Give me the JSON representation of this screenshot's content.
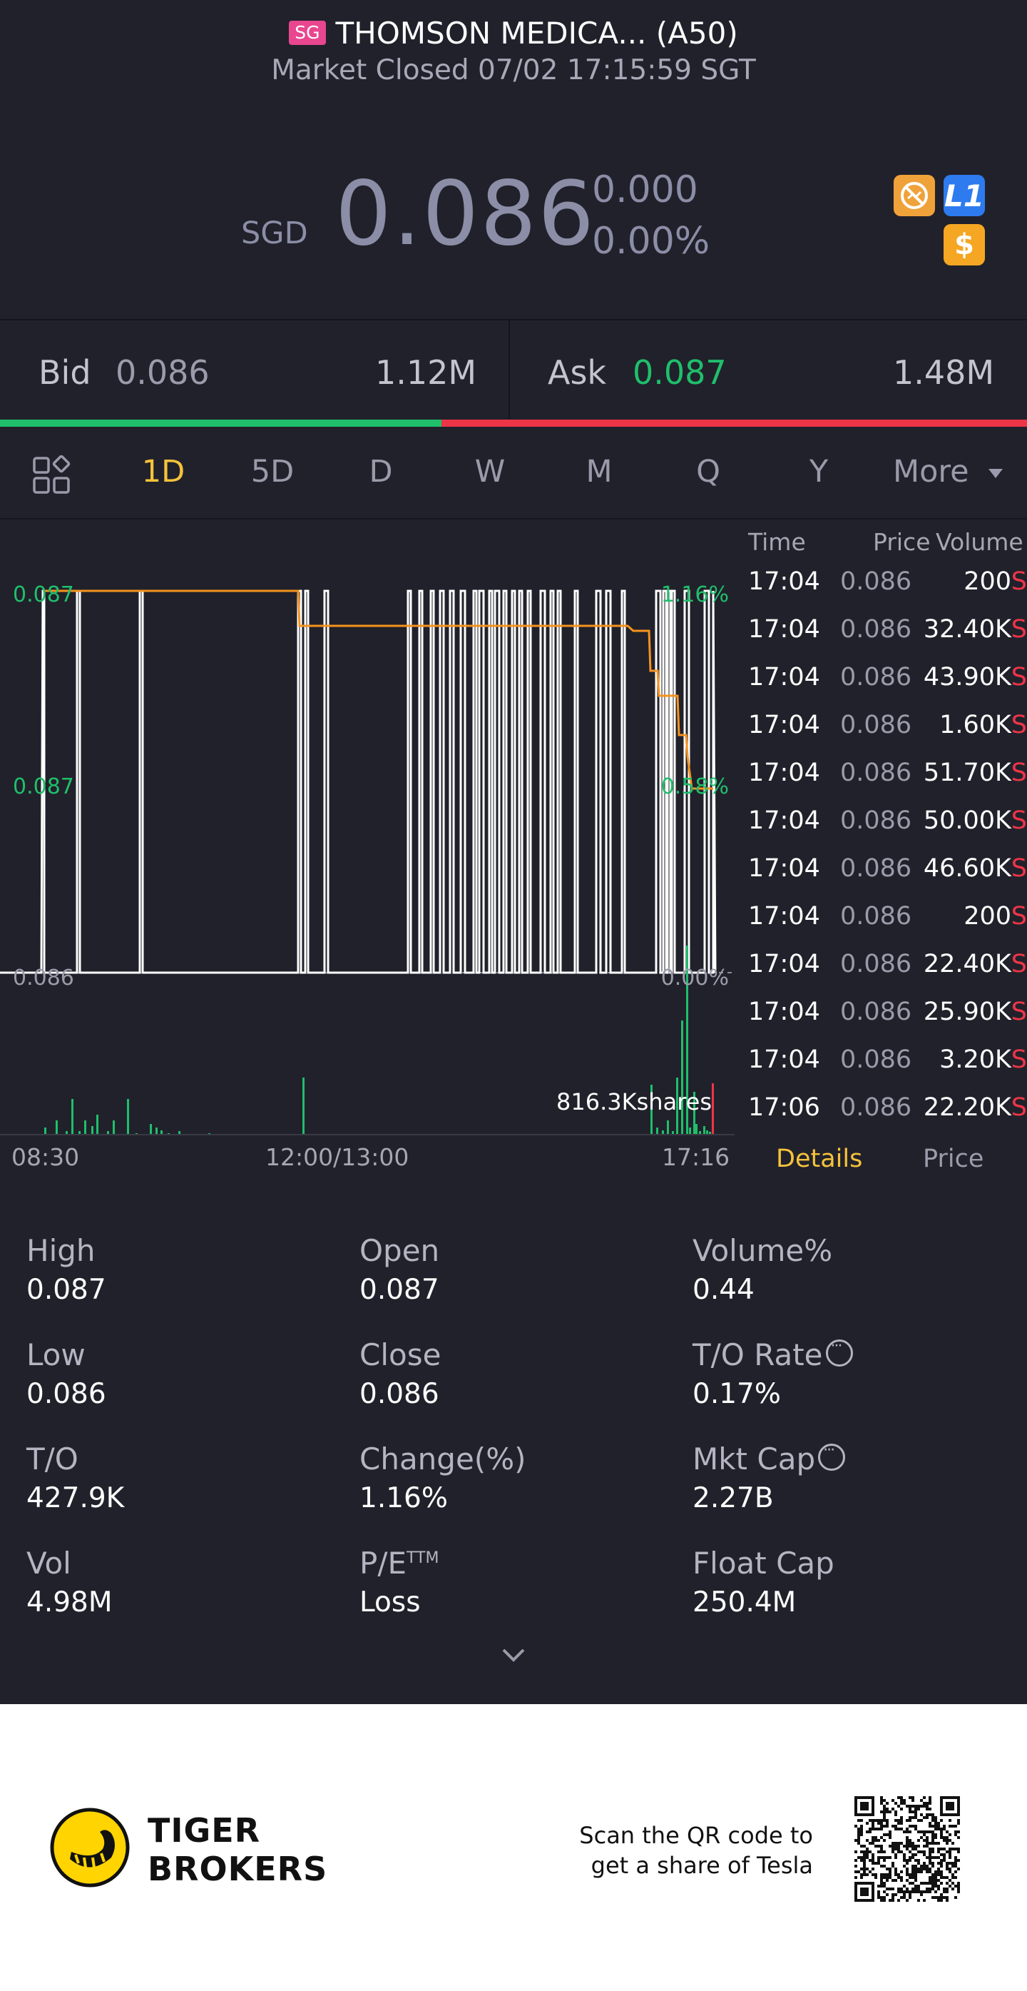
{
  "header": {
    "market_badge": "SG",
    "title": "THOMSON MEDICA... (A50)",
    "status": "Market Closed 07/02 17:15:59 SGT",
    "currency": "SGD",
    "price": "0.086",
    "change": "0.000",
    "change_pct": "0.00%",
    "badge_icons": [
      "no-short-icon",
      "level1-icon",
      "dollar-icon"
    ],
    "badge_level_text": "L1",
    "badge_dollar_text": "$"
  },
  "bid_ask": {
    "bid_label": "Bid",
    "bid_price": "0.086",
    "bid_volume": "1.12M",
    "ask_label": "Ask",
    "ask_price": "0.087",
    "ask_volume": "1.48M",
    "bid_ratio": 0.43
  },
  "periods": {
    "items": [
      "1D",
      "5D",
      "D",
      "W",
      "M",
      "Q",
      "Y"
    ],
    "active": "1D",
    "more_label": "More"
  },
  "chart": {
    "price_high": "0.087",
    "price_mid": "0.087",
    "price_low": "0.086",
    "pct_high": "1.16%",
    "pct_mid": "0.58%",
    "pct_low": "0.00%",
    "volume_label": "816.3Kshares",
    "x_labels": [
      "08:30",
      "12:00/13:00",
      "17:16"
    ]
  },
  "chart_data": {
    "type": "line",
    "series": [
      {
        "name": "",
        "color": "#ffffff"
      },
      {
        "name": "",
        "color": "#f5931e"
      }
    ],
    "ylim": [
      0.086,
      0.087
    ],
    "pct_range": [
      "0.00%",
      "1.16%"
    ],
    "x_ticks": [
      "08:30",
      "12:00/13:00",
      "17:16"
    ]
  },
  "trades": {
    "headers": {
      "time": "Time",
      "price": "Price",
      "volume": "Volume"
    },
    "rows": [
      {
        "time": "17:04",
        "price": "0.086",
        "volume": "200",
        "side": "S"
      },
      {
        "time": "17:04",
        "price": "0.086",
        "volume": "32.40K",
        "side": "S"
      },
      {
        "time": "17:04",
        "price": "0.086",
        "volume": "43.90K",
        "side": "S"
      },
      {
        "time": "17:04",
        "price": "0.086",
        "volume": "1.60K",
        "side": "S"
      },
      {
        "time": "17:04",
        "price": "0.086",
        "volume": "51.70K",
        "side": "S"
      },
      {
        "time": "17:04",
        "price": "0.086",
        "volume": "50.00K",
        "side": "S"
      },
      {
        "time": "17:04",
        "price": "0.086",
        "volume": "46.60K",
        "side": "S"
      },
      {
        "time": "17:04",
        "price": "0.086",
        "volume": "200",
        "side": "S"
      },
      {
        "time": "17:04",
        "price": "0.086",
        "volume": "22.40K",
        "side": "S"
      },
      {
        "time": "17:04",
        "price": "0.086",
        "volume": "25.90K",
        "side": "S"
      },
      {
        "time": "17:04",
        "price": "0.086",
        "volume": "3.20K",
        "side": "S"
      },
      {
        "time": "17:06",
        "price": "0.086",
        "volume": "22.20K",
        "side": "S"
      }
    ],
    "tab_details": "Details",
    "tab_price": "Price"
  },
  "stats": {
    "high_label": "High",
    "high": "0.087",
    "open_label": "Open",
    "open": "0.087",
    "volpct_label": "Volume%",
    "volpct": "0.44",
    "low_label": "Low",
    "low": "0.086",
    "close_label": "Close",
    "close": "0.086",
    "torate_label": "T/O Rate",
    "torate": "0.17%",
    "to_label": "T/O",
    "to": "427.9K",
    "chg_label": "Change(%)",
    "chg": "1.16%",
    "mktcap_label": "Mkt Cap",
    "mktcap": "2.27B",
    "vol_label": "Vol",
    "vol": "4.98M",
    "pe_label": "P/E",
    "pe_sup": "TTM",
    "pe": "Loss",
    "float_label": "Float Cap",
    "float": "250.4M"
  },
  "footer": {
    "brand_line1": "TIGER",
    "brand_line2": "BROKERS",
    "scan_line1": "Scan the QR code to",
    "scan_line2": "get a share of Tesla"
  },
  "colors": {
    "background": "#21212b",
    "accent_yellow": "#f5c33b",
    "up_green": "#1fbf6b",
    "down_red": "#ee3548",
    "avg_line": "#f5931e",
    "neutral_price": "#8b8ea6"
  }
}
